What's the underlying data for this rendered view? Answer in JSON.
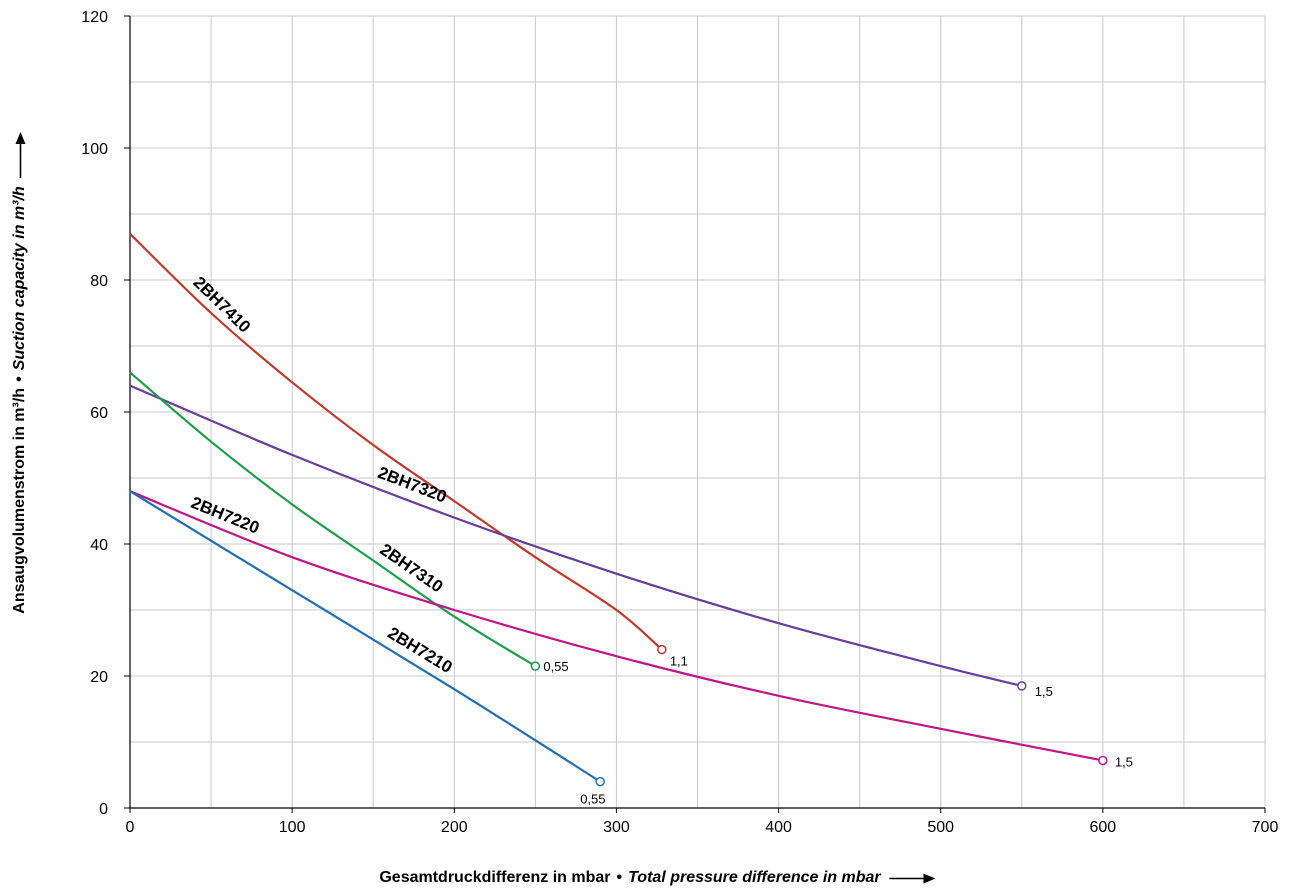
{
  "chart_data": {
    "type": "line",
    "title": "",
    "xlabel": "Gesamtdruckdifferenz in mbar",
    "xlabel_en": "Total pressure difference in mbar",
    "ylabel": "Ansaugvolumenstrom in m³/h",
    "ylabel_en": "Suction capacity in m³/h",
    "separator": "•",
    "xlim": [
      0,
      700
    ],
    "ylim": [
      0,
      120
    ],
    "xticks": [
      0,
      100,
      200,
      300,
      400,
      500,
      600,
      700
    ],
    "yticks": [
      0,
      20,
      40,
      60,
      80,
      100,
      120
    ],
    "grid": true,
    "grid_x_minor": 50,
    "grid_y_minor": 10,
    "legend": "none",
    "series": [
      {
        "name": "2BH7410",
        "color": "#c0392b",
        "x": [
          0,
          50,
          100,
          150,
          200,
          250,
          300,
          328
        ],
        "y": [
          87,
          75,
          64.5,
          55,
          46.5,
          38,
          30,
          24
        ],
        "end_label": "1,1"
      },
      {
        "name": "2BH7320",
        "color": "#6a3d9a",
        "x": [
          0,
          100,
          200,
          300,
          400,
          500,
          550
        ],
        "y": [
          64,
          53.5,
          44,
          35.5,
          28,
          21.5,
          18.5
        ],
        "end_label": "1,5"
      },
      {
        "name": "2BH7310",
        "color": "#1e9e4a",
        "x": [
          0,
          50,
          100,
          150,
          200,
          250
        ],
        "y": [
          66,
          55.5,
          46,
          37.5,
          29,
          21.5
        ],
        "end_label": "0,55"
      },
      {
        "name": "2BH7220",
        "color": "#c0168a",
        "x": [
          0,
          100,
          200,
          300,
          400,
          500,
          600
        ],
        "y": [
          48,
          38,
          30,
          23,
          17,
          12,
          7.2
        ],
        "end_label": "1,5"
      },
      {
        "name": "2BH7210",
        "color": "#1f6fb5",
        "x": [
          0,
          100,
          200,
          290
        ],
        "y": [
          48,
          33,
          18,
          4
        ],
        "end_label": "0,55"
      }
    ]
  }
}
